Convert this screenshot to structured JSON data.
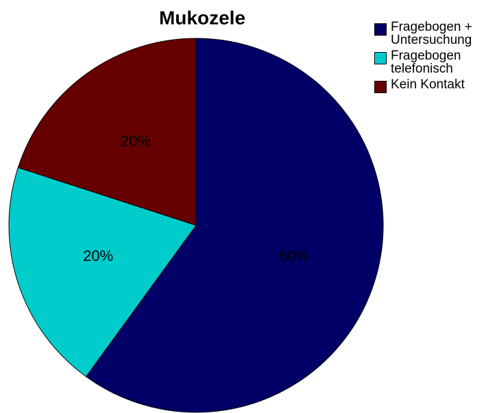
{
  "chart_data": {
    "type": "pie",
    "title": "Mukozele",
    "categories": [
      "Fragebogen + Untersuchung",
      "Fragebogen telefonisch",
      "Kein Kontakt"
    ],
    "values": [
      60,
      20,
      20
    ],
    "value_labels": [
      "60%",
      "20%",
      "20%"
    ],
    "colors": [
      "#000066",
      "#00cccc",
      "#660000"
    ],
    "legend": "top-right"
  }
}
